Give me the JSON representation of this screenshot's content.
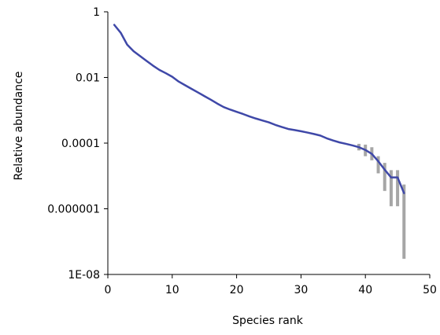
{
  "chart_data": {
    "type": "line",
    "title": "",
    "xlabel": "Species rank",
    "ylabel": "Relative abundance",
    "xlim": [
      0,
      50
    ],
    "ylim": [
      1e-08,
      1
    ],
    "yscale": "log",
    "x_ticks": [
      0,
      10,
      20,
      30,
      40,
      50
    ],
    "x_tick_labels": [
      "0",
      "10",
      "20",
      "30",
      "40",
      "50"
    ],
    "y_ticks": [
      1e-08,
      1e-06,
      0.0001,
      0.01,
      1
    ],
    "y_tick_labels": [
      "1E-08",
      "0.000001",
      "0.0001",
      "0.01",
      "1"
    ],
    "grid": false,
    "legend": "none",
    "series": [
      {
        "color": "#3f48a8",
        "x": [
          1,
          2,
          3,
          4,
          5,
          6,
          7,
          8,
          9,
          10,
          11,
          12,
          13,
          14,
          15,
          16,
          17,
          18,
          19,
          20,
          21,
          22,
          23,
          24,
          25,
          26,
          27,
          28,
          29,
          30,
          31,
          32,
          33,
          34,
          35,
          36,
          37,
          38,
          39,
          40,
          41,
          42,
          43,
          44,
          45,
          46
        ],
        "y": [
          0.4,
          0.23,
          0.1,
          0.063,
          0.045,
          0.032,
          0.023,
          0.017,
          0.0135,
          0.0105,
          0.0075,
          0.0058,
          0.0045,
          0.0035,
          0.0027,
          0.0021,
          0.0016,
          0.00125,
          0.00105,
          0.0009,
          0.00077,
          0.00065,
          0.00056,
          0.00049,
          0.00043,
          0.00036,
          0.00031,
          0.00027,
          0.00025,
          0.00023,
          0.00021,
          0.00019,
          0.00017,
          0.00014,
          0.00012,
          0.000105,
          9.5e-05,
          8.5e-05,
          7.5e-05,
          6.2e-05,
          4.7e-05,
          2.8e-05,
          1.55e-05,
          9e-06,
          9e-06,
          3e-06
        ],
        "error_bars": [
          {
            "x": 39,
            "low": 6e-05,
            "high": 9.5e-05
          },
          {
            "x": 40,
            "low": 4e-05,
            "high": 9e-05
          },
          {
            "x": 41,
            "low": 3e-05,
            "high": 7.5e-05
          },
          {
            "x": 42,
            "low": 1.2e-05,
            "high": 4e-05
          },
          {
            "x": 43,
            "low": 3.5e-06,
            "high": 2.5e-05
          },
          {
            "x": 44,
            "low": 1.2e-06,
            "high": 1.5e-05
          },
          {
            "x": 45,
            "low": 1.2e-06,
            "high": 1.5e-05
          },
          {
            "x": 46,
            "low": 3e-08,
            "high": 5.5e-06
          }
        ],
        "error_bar_color": "#a6a6a6"
      }
    ]
  }
}
